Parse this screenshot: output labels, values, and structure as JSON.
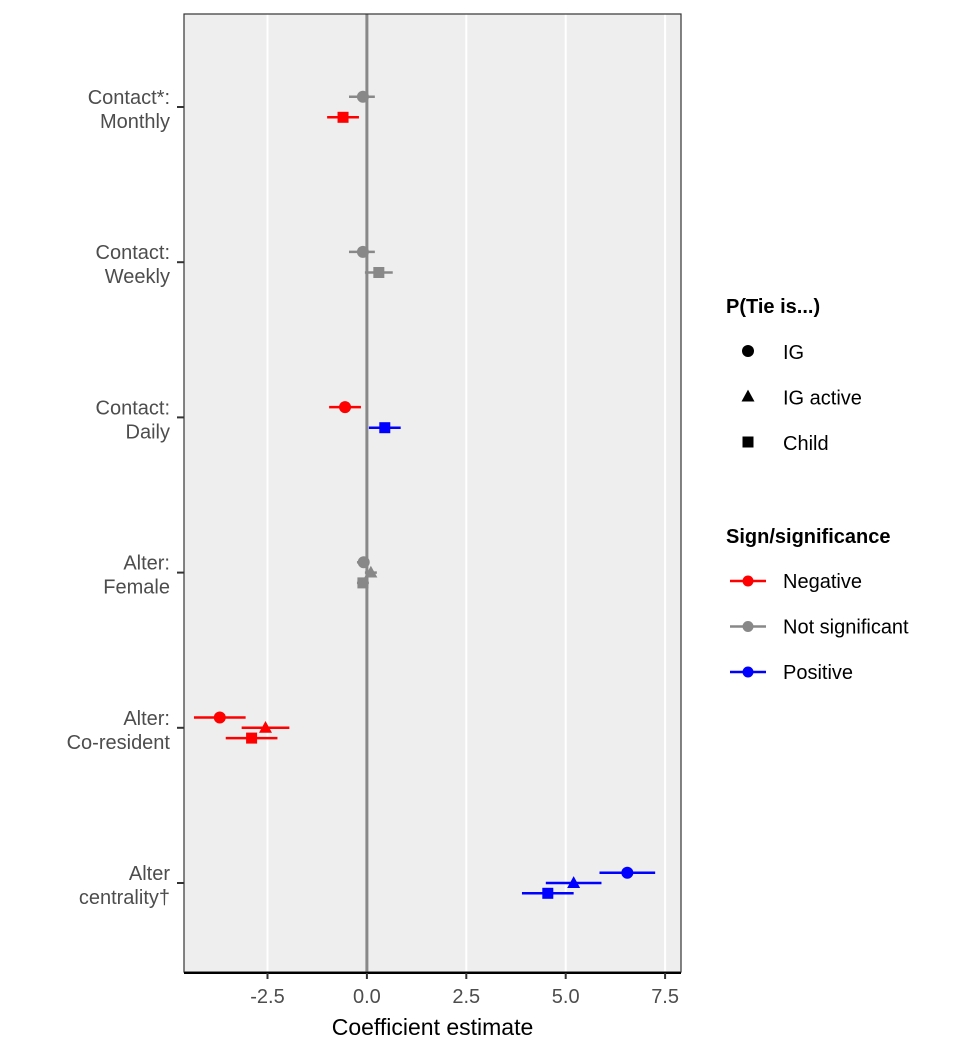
{
  "chart_data": {
    "type": "scatter",
    "subtype": "coefficient-plot",
    "xlabel": "Coefficient estimate",
    "xlim": [
      -4.6,
      7.9
    ],
    "x_ticks": [
      -2.5,
      0.0,
      2.5,
      5.0,
      7.5
    ],
    "x_tick_labels": [
      "-2.5",
      "0.0",
      "2.5",
      "5.0",
      "7.5"
    ],
    "reference_line_x": 0,
    "grid": true,
    "legend_position": "right",
    "categories": [
      {
        "key": "monthly",
        "label_lines": [
          "Contact*:",
          "Monthly"
        ]
      },
      {
        "key": "weekly",
        "label_lines": [
          "Contact:",
          "Weekly"
        ]
      },
      {
        "key": "daily",
        "label_lines": [
          "Contact:",
          "Daily"
        ]
      },
      {
        "key": "female",
        "label_lines": [
          "Alter:",
          "Female"
        ]
      },
      {
        "key": "coresident",
        "label_lines": [
          "Alter:",
          "Co-resident"
        ]
      },
      {
        "key": "centrality",
        "label_lines": [
          "Alter",
          "centrality†"
        ]
      }
    ],
    "series": [
      {
        "name": "IG",
        "shape": "circle",
        "offset": -1,
        "points": [
          {
            "category": "monthly",
            "estimate": -0.1,
            "low": -0.45,
            "high": 0.2,
            "sign": "Not significant"
          },
          {
            "category": "weekly",
            "estimate": -0.1,
            "low": -0.45,
            "high": 0.2,
            "sign": "Not significant"
          },
          {
            "category": "daily",
            "estimate": -0.55,
            "low": -0.95,
            "high": -0.15,
            "sign": "Negative"
          },
          {
            "category": "female",
            "estimate": -0.08,
            "low": -0.25,
            "high": 0.05,
            "sign": "Not significant"
          },
          {
            "category": "coresident",
            "estimate": -3.7,
            "low": -4.35,
            "high": -3.05,
            "sign": "Negative"
          },
          {
            "category": "centrality",
            "estimate": 6.55,
            "low": 5.85,
            "high": 7.25,
            "sign": "Positive"
          }
        ]
      },
      {
        "name": "IG active",
        "shape": "triangle",
        "offset": 0,
        "points": [
          {
            "category": "female",
            "estimate": 0.1,
            "low": -0.05,
            "high": 0.25,
            "sign": "Not significant"
          },
          {
            "category": "coresident",
            "estimate": -2.55,
            "low": -3.15,
            "high": -1.95,
            "sign": "Negative"
          },
          {
            "category": "centrality",
            "estimate": 5.2,
            "low": 4.5,
            "high": 5.9,
            "sign": "Positive"
          }
        ]
      },
      {
        "name": "Child",
        "shape": "square",
        "offset": 1,
        "points": [
          {
            "category": "monthly",
            "estimate": -0.6,
            "low": -1.0,
            "high": -0.2,
            "sign": "Negative"
          },
          {
            "category": "weekly",
            "estimate": 0.3,
            "low": -0.05,
            "high": 0.65,
            "sign": "Not significant"
          },
          {
            "category": "daily",
            "estimate": 0.45,
            "low": 0.05,
            "high": 0.85,
            "sign": "Positive"
          },
          {
            "category": "female",
            "estimate": -0.1,
            "low": -0.25,
            "high": 0.05,
            "sign": "Not significant"
          },
          {
            "category": "coresident",
            "estimate": -2.9,
            "low": -3.55,
            "high": -2.25,
            "sign": "Negative"
          },
          {
            "category": "centrality",
            "estimate": 4.55,
            "low": 3.9,
            "high": 5.2,
            "sign": "Positive"
          }
        ]
      }
    ],
    "legend_shape": {
      "title": "P(Tie is...)",
      "items": [
        {
          "label": "IG",
          "shape": "circle"
        },
        {
          "label": "IG active",
          "shape": "triangle"
        },
        {
          "label": "Child",
          "shape": "square"
        }
      ]
    },
    "legend_sign": {
      "title": "Sign/significance",
      "items": [
        {
          "label": "Negative",
          "color": "#ff0000"
        },
        {
          "label": "Not significant",
          "color": "#888888"
        },
        {
          "label": "Positive",
          "color": "#0000ff"
        }
      ]
    },
    "colors": {
      "Negative": "#ff0000",
      "Not significant": "#888888",
      "Positive": "#0000ff",
      "panel_background": "#eeeeee",
      "grid": "#ffffff",
      "reference_line": "#888888"
    }
  }
}
